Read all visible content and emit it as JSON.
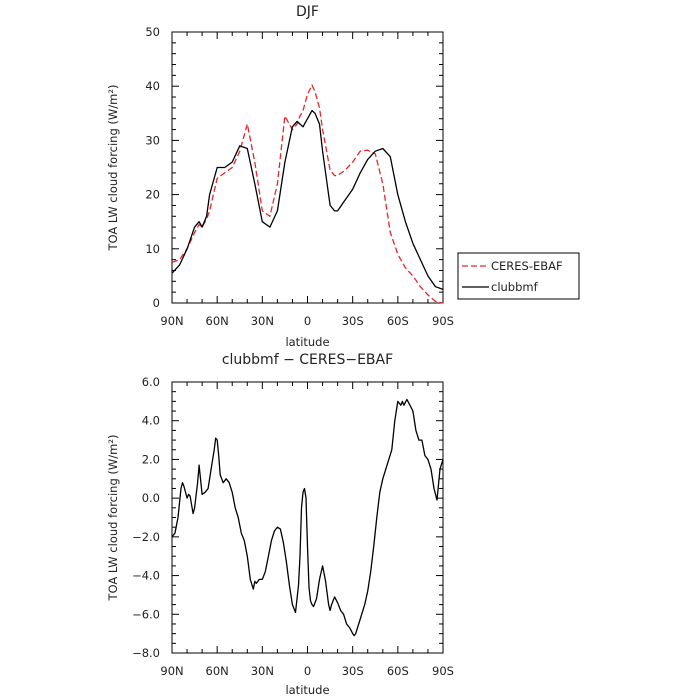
{
  "chart_data": [
    {
      "type": "line",
      "title": "DJF",
      "xlabel": "latitude",
      "ylabel": "TOA LW cloud forcing (W/m²)",
      "xticklabels": [
        "90N",
        "60N",
        "30N",
        "0",
        "30S",
        "60S",
        "90S"
      ],
      "xlim": [
        90,
        -90
      ],
      "ylim": [
        0,
        50
      ],
      "yticklabels": [
        "0",
        "10",
        "20",
        "30",
        "40",
        "50"
      ],
      "grid": false,
      "legend": "outside-right",
      "series": [
        {
          "name": "CERES-EBAF",
          "style": "dashed",
          "color": "#e8252b",
          "x": [
            90,
            85,
            80,
            75,
            72,
            70,
            67,
            65,
            60,
            55,
            50,
            45,
            40,
            35,
            30,
            25,
            20,
            15,
            10,
            7,
            5,
            3,
            0,
            -3,
            -5,
            -8,
            -10,
            -13,
            -15,
            -18,
            -20,
            -25,
            -30,
            -35,
            -40,
            -45,
            -50,
            -55,
            -60,
            -65,
            -70,
            -75,
            -80,
            -85,
            -90
          ],
          "values": [
            7.5,
            8,
            10,
            13,
            14.5,
            14,
            15.5,
            17,
            23,
            24,
            25,
            28,
            33,
            26,
            17,
            16,
            22,
            34.5,
            32,
            33,
            34.5,
            35.5,
            38.5,
            40.2,
            39,
            36,
            32,
            27.5,
            24.5,
            23.5,
            23.5,
            24.5,
            26,
            28,
            28.2,
            27.5,
            22,
            13,
            9,
            6.5,
            5,
            3,
            1.5,
            0.3,
            0
          ]
        },
        {
          "name": "clubbmf",
          "style": "solid",
          "color": "#000000",
          "x": [
            90,
            85,
            80,
            75,
            72,
            70,
            67,
            65,
            60,
            55,
            50,
            45,
            40,
            35,
            30,
            25,
            20,
            15,
            10,
            7,
            5,
            3,
            0,
            -3,
            -5,
            -8,
            -10,
            -13,
            -15,
            -18,
            -20,
            -25,
            -30,
            -35,
            -40,
            -45,
            -50,
            -55,
            -60,
            -65,
            -70,
            -75,
            -80,
            -85,
            -90
          ],
          "values": [
            5.5,
            7,
            10,
            14,
            15,
            14,
            16,
            20,
            25,
            25,
            26,
            29,
            28.5,
            22,
            15,
            14,
            17,
            26,
            32.5,
            33.5,
            33,
            32.5,
            34,
            35.5,
            35,
            33,
            28,
            22,
            18,
            17,
            17,
            19,
            21,
            24,
            26.5,
            28,
            28.5,
            27,
            20,
            15,
            11,
            8,
            5,
            3,
            2.5
          ]
        }
      ]
    },
    {
      "type": "line",
      "title": "clubbmf − CERES−EBAF",
      "xlabel": "latitude",
      "ylabel": "TOA LW cloud forcing (W/m²)",
      "xticklabels": [
        "90N",
        "60N",
        "30N",
        "0",
        "30S",
        "60S",
        "90S"
      ],
      "xlim": [
        90,
        -90
      ],
      "ylim": [
        -8,
        6
      ],
      "yticklabels": [
        "−8.0",
        "−6.0",
        "−4.0",
        "−2.0",
        "0.0",
        "2.0",
        "4.0",
        "6.0"
      ],
      "grid": false,
      "series": [
        {
          "style": "solid",
          "color": "#000000",
          "x": [
            90,
            88,
            86,
            84,
            83,
            82,
            80,
            79,
            78,
            76,
            75,
            73,
            72,
            70,
            68,
            66,
            64,
            62,
            61,
            60,
            59,
            58,
            56,
            54,
            52,
            50,
            48,
            46,
            44,
            42,
            40,
            38,
            36,
            35,
            34,
            32,
            30,
            28,
            26,
            24,
            22,
            20,
            18,
            16,
            14,
            12,
            10,
            8,
            6,
            5,
            4,
            3,
            2,
            1,
            0,
            -1,
            -2,
            -3,
            -4,
            -5,
            -6,
            -8,
            -10,
            -12,
            -14,
            -15,
            -16,
            -18,
            -20,
            -22,
            -24,
            -26,
            -28,
            -30,
            -31,
            -32,
            -34,
            -36,
            -38,
            -40,
            -42,
            -44,
            -46,
            -48,
            -50,
            -52,
            -54,
            -56,
            -58,
            -60,
            -62,
            -63,
            -64,
            -66,
            -68,
            -70,
            -72,
            -74,
            -76,
            -78,
            -80,
            -82,
            -84,
            -86,
            -88,
            -90
          ],
          "values": [
            -2.0,
            -1.8,
            -1.0,
            0.5,
            0.8,
            0.6,
            0.0,
            0.2,
            0.1,
            -0.8,
            -0.5,
            0.8,
            1.7,
            0.2,
            0.3,
            0.5,
            1.5,
            2.5,
            3.1,
            3.0,
            2.2,
            1.2,
            0.8,
            1.0,
            0.8,
            0.3,
            -0.5,
            -1.0,
            -1.8,
            -2.2,
            -3.0,
            -4.2,
            -4.7,
            -4.3,
            -4.4,
            -4.2,
            -4.2,
            -3.8,
            -3.0,
            -2.2,
            -1.7,
            -1.5,
            -1.6,
            -2.3,
            -3.3,
            -4.5,
            -5.5,
            -5.9,
            -4.5,
            -3.0,
            -0.5,
            0.3,
            0.5,
            0.0,
            -2.5,
            -4.6,
            -5.3,
            -5.5,
            -5.6,
            -5.4,
            -5.2,
            -4.2,
            -3.5,
            -4.3,
            -5.5,
            -5.8,
            -5.5,
            -5.1,
            -5.4,
            -5.8,
            -6.0,
            -6.5,
            -6.7,
            -7.0,
            -7.1,
            -7.0,
            -6.5,
            -6.0,
            -5.5,
            -4.8,
            -3.8,
            -2.5,
            -1.0,
            0.3,
            1.0,
            1.5,
            2.0,
            2.5,
            4.0,
            5.0,
            4.8,
            5.0,
            4.8,
            5.1,
            4.8,
            4.5,
            3.5,
            3.0,
            3.0,
            2.2,
            2.0,
            1.5,
            0.5,
            -0.1,
            1.5,
            2.0
          ]
        }
      ]
    }
  ]
}
